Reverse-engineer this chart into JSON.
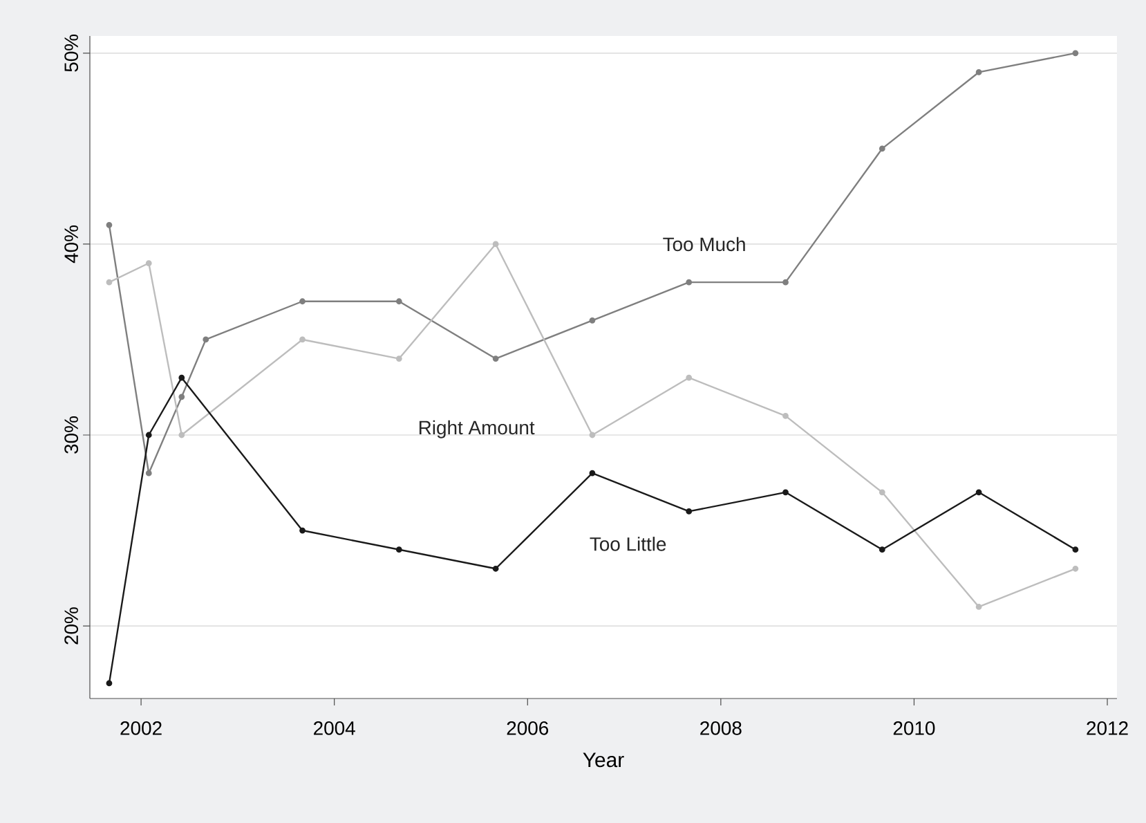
{
  "chart_data": {
    "type": "line",
    "xlabel": "Year",
    "xlim": [
      2001.47,
      2012.1
    ],
    "xticks": [
      2002,
      2004,
      2006,
      2008,
      2010,
      2012
    ],
    "ylim": [
      16.2,
      50.9
    ],
    "yticks": [
      {
        "value": 20,
        "label": "20%"
      },
      {
        "value": 30,
        "label": "30%"
      },
      {
        "value": 40,
        "label": "40%"
      },
      {
        "value": 50,
        "label": "50%"
      }
    ],
    "grid": "y",
    "marker": "circle",
    "line_style": "solid",
    "series": [
      {
        "name": "Too Much",
        "color": "#7f7f7f",
        "x": [
          2001.67,
          2002.08,
          2002.42,
          2002.67,
          2003.67,
          2004.67,
          2005.67,
          2006.67,
          2007.67,
          2008.67,
          2009.67,
          2010.67,
          2011.67
        ],
        "values": [
          41,
          28,
          32,
          35,
          37,
          37,
          34,
          36,
          38,
          38,
          45,
          49,
          50
        ]
      },
      {
        "name": "Right Amount",
        "color": "#bdbdbd",
        "x": [
          2001.67,
          2002.08,
          2002.42,
          2003.67,
          2004.67,
          2005.67,
          2006.67,
          2007.67,
          2008.67,
          2009.67,
          2010.67,
          2011.67
        ],
        "values": [
          38,
          39,
          30,
          35,
          34,
          40,
          30,
          33,
          31,
          27,
          21,
          23
        ]
      },
      {
        "name": "Too Little",
        "color": "#1a1a1a",
        "x": [
          2001.67,
          2002.08,
          2002.42,
          2003.67,
          2004.67,
          2005.67,
          2006.67,
          2007.67,
          2008.67,
          2009.67,
          2010.67,
          2011.67
        ],
        "values": [
          17,
          30,
          33,
          25,
          24,
          23,
          28,
          26,
          27,
          24,
          27,
          24
        ]
      }
    ]
  }
}
